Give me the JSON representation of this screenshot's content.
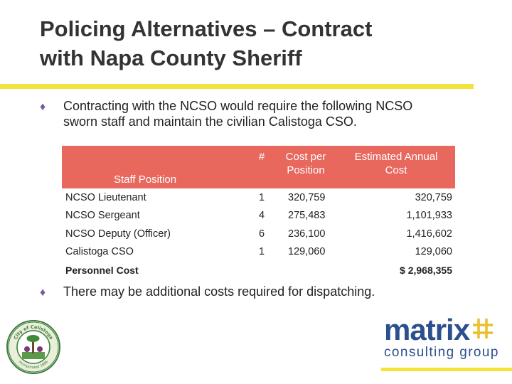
{
  "slide": {
    "title_line1": "Policing Alternatives – Contract",
    "title_line2": "with Napa County Sheriff",
    "bullet1_line1": "Contracting with the NCSO would require the following NCSO",
    "bullet1_line2": "sworn staff and maintain the civilian Calistoga CSO.",
    "bullet2": "There may be additional costs required for dispatching."
  },
  "table": {
    "headers": {
      "position": "Staff Position",
      "count": "#",
      "cost_line1": "Cost per",
      "cost_line2": "Position",
      "annual_line1": "Estimated Annual",
      "annual_line2": "Cost"
    },
    "rows": [
      {
        "position": "NCSO Lieutenant",
        "count": "1",
        "cost": "320,759",
        "annual": "320,759"
      },
      {
        "position": "NCSO Sergeant",
        "count": "4",
        "cost": "275,483",
        "annual": "1,101,933"
      },
      {
        "position": "NCSO Deputy (Officer)",
        "count": "6",
        "cost": "236,100",
        "annual": "1,416,602"
      },
      {
        "position": "Calistoga CSO",
        "count": "1",
        "cost": "129,060",
        "annual": "129,060"
      }
    ],
    "total": {
      "label": "Personnel Cost",
      "value": "$  2,968,355"
    }
  },
  "branding": {
    "matrix_word": "matrix",
    "matrix_sub": "consulting group",
    "seal_top_text": "City of Calistoga",
    "seal_bottom_text": "Incorporated 1886",
    "accent_color": "#f2e33b",
    "header_color": "#e8685e",
    "brand_blue": "#2c4f8f"
  }
}
